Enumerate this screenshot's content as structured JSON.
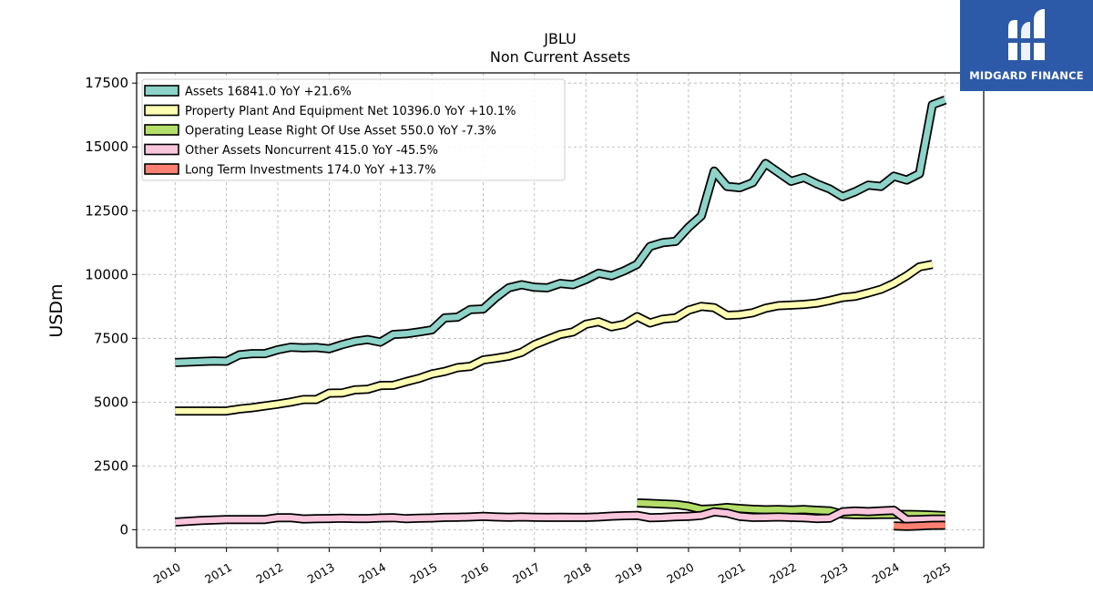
{
  "chart_data": {
    "type": "line",
    "title": "JBLU",
    "subtitle": "Non Current  Assets",
    "ylabel": "USDm",
    "xlabel": "",
    "ylim": [
      -700,
      17900
    ],
    "xlim": [
      2009.25,
      2025.75
    ],
    "yticks": [
      0,
      2500,
      5000,
      7500,
      10000,
      12500,
      15000,
      17500
    ],
    "ytick_labels": [
      "0",
      "2500",
      "5000",
      "7500",
      "10000",
      "12500",
      "15000",
      "17500"
    ],
    "xticks": [
      2010,
      2011,
      2012,
      2013,
      2014,
      2015,
      2016,
      2017,
      2018,
      2019,
      2020,
      2021,
      2022,
      2023,
      2024,
      2025
    ],
    "xtick_labels": [
      "2010",
      "2011",
      "2012",
      "2013",
      "2014",
      "2015",
      "2016",
      "2017",
      "2018",
      "2019",
      "2020",
      "2021",
      "2022",
      "2023",
      "2024",
      "2025"
    ],
    "grid": true,
    "legend_position": "top-left",
    "series": [
      {
        "name": "Assets",
        "legend": "Assets  16841.0 YoY +21.6%",
        "color": "#8dd3c7",
        "points": [
          [
            2010.0,
            6550
          ],
          [
            2010.25,
            6570
          ],
          [
            2010.5,
            6590
          ],
          [
            2010.75,
            6610
          ],
          [
            2011.0,
            6600
          ],
          [
            2011.25,
            6850
          ],
          [
            2011.5,
            6900
          ],
          [
            2011.75,
            6900
          ],
          [
            2012.0,
            7050
          ],
          [
            2012.25,
            7150
          ],
          [
            2012.5,
            7130
          ],
          [
            2012.75,
            7140
          ],
          [
            2013.0,
            7090
          ],
          [
            2013.25,
            7250
          ],
          [
            2013.5,
            7380
          ],
          [
            2013.75,
            7450
          ],
          [
            2014.0,
            7350
          ],
          [
            2014.25,
            7650
          ],
          [
            2014.5,
            7680
          ],
          [
            2014.75,
            7750
          ],
          [
            2015.0,
            7830
          ],
          [
            2015.25,
            8300
          ],
          [
            2015.5,
            8330
          ],
          [
            2015.75,
            8630
          ],
          [
            2016.0,
            8650
          ],
          [
            2016.25,
            9100
          ],
          [
            2016.5,
            9480
          ],
          [
            2016.75,
            9600
          ],
          [
            2017.0,
            9500
          ],
          [
            2017.25,
            9480
          ],
          [
            2017.5,
            9650
          ],
          [
            2017.75,
            9600
          ],
          [
            2018.0,
            9800
          ],
          [
            2018.25,
            10050
          ],
          [
            2018.5,
            9950
          ],
          [
            2018.75,
            10150
          ],
          [
            2019.0,
            10400
          ],
          [
            2019.25,
            11100
          ],
          [
            2019.5,
            11250
          ],
          [
            2019.75,
            11300
          ],
          [
            2020.0,
            11850
          ],
          [
            2020.25,
            12300
          ],
          [
            2020.5,
            14050
          ],
          [
            2020.75,
            13450
          ],
          [
            2021.0,
            13400
          ],
          [
            2021.25,
            13600
          ],
          [
            2021.5,
            14350
          ],
          [
            2021.75,
            14000
          ],
          [
            2022.0,
            13650
          ],
          [
            2022.25,
            13800
          ],
          [
            2022.5,
            13550
          ],
          [
            2022.75,
            13350
          ],
          [
            2023.0,
            13050
          ],
          [
            2023.25,
            13250
          ],
          [
            2023.5,
            13500
          ],
          [
            2023.75,
            13450
          ],
          [
            2024.0,
            13850
          ],
          [
            2024.25,
            13700
          ],
          [
            2024.5,
            13950
          ],
          [
            2024.75,
            16650
          ],
          [
            2025.0,
            16841
          ]
        ]
      },
      {
        "name": "Property Plant And Equipment Net",
        "legend": "Property Plant And Equipment Net  10396.0 YoY +10.1%",
        "color": "#ffffb3",
        "points": [
          [
            2010.0,
            4650
          ],
          [
            2010.25,
            4650
          ],
          [
            2010.5,
            4650
          ],
          [
            2010.75,
            4650
          ],
          [
            2011.0,
            4650
          ],
          [
            2011.25,
            4730
          ],
          [
            2011.5,
            4780
          ],
          [
            2011.75,
            4850
          ],
          [
            2012.0,
            4920
          ],
          [
            2012.25,
            5000
          ],
          [
            2012.5,
            5100
          ],
          [
            2012.75,
            5100
          ],
          [
            2013.0,
            5350
          ],
          [
            2013.25,
            5360
          ],
          [
            2013.5,
            5480
          ],
          [
            2013.75,
            5500
          ],
          [
            2014.0,
            5650
          ],
          [
            2014.25,
            5660
          ],
          [
            2014.5,
            5800
          ],
          [
            2014.75,
            5930
          ],
          [
            2015.0,
            6100
          ],
          [
            2015.25,
            6200
          ],
          [
            2015.5,
            6350
          ],
          [
            2015.75,
            6400
          ],
          [
            2016.0,
            6650
          ],
          [
            2016.25,
            6720
          ],
          [
            2016.5,
            6800
          ],
          [
            2016.75,
            6950
          ],
          [
            2017.0,
            7250
          ],
          [
            2017.25,
            7450
          ],
          [
            2017.5,
            7650
          ],
          [
            2017.75,
            7750
          ],
          [
            2018.0,
            8050
          ],
          [
            2018.25,
            8150
          ],
          [
            2018.5,
            7950
          ],
          [
            2018.75,
            8050
          ],
          [
            2019.0,
            8350
          ],
          [
            2019.25,
            8100
          ],
          [
            2019.5,
            8250
          ],
          [
            2019.75,
            8300
          ],
          [
            2020.0,
            8600
          ],
          [
            2020.25,
            8750
          ],
          [
            2020.5,
            8700
          ],
          [
            2020.75,
            8400
          ],
          [
            2021.0,
            8420
          ],
          [
            2021.25,
            8500
          ],
          [
            2021.5,
            8680
          ],
          [
            2021.75,
            8780
          ],
          [
            2022.0,
            8800
          ],
          [
            2022.25,
            8830
          ],
          [
            2022.5,
            8880
          ],
          [
            2022.75,
            8980
          ],
          [
            2023.0,
            9100
          ],
          [
            2023.25,
            9150
          ],
          [
            2023.5,
            9280
          ],
          [
            2023.75,
            9420
          ],
          [
            2024.0,
            9650
          ],
          [
            2024.25,
            9950
          ],
          [
            2024.5,
            10300
          ],
          [
            2024.75,
            10396
          ]
        ]
      },
      {
        "name": "Operating Lease Right Of Use Asset",
        "legend": "Operating Lease Right Of Use Asset  550.0 YoY -7.3%",
        "color": "#b3de69",
        "points": [
          [
            2019.0,
            1050
          ],
          [
            2019.25,
            1030
          ],
          [
            2019.5,
            1010
          ],
          [
            2019.75,
            990
          ],
          [
            2020.0,
            920
          ],
          [
            2020.25,
            800
          ],
          [
            2020.5,
            820
          ],
          [
            2020.75,
            870
          ],
          [
            2021.0,
            830
          ],
          [
            2021.25,
            800
          ],
          [
            2021.5,
            780
          ],
          [
            2021.75,
            790
          ],
          [
            2022.0,
            770
          ],
          [
            2022.25,
            790
          ],
          [
            2022.5,
            760
          ],
          [
            2022.75,
            740
          ],
          [
            2023.0,
            610
          ],
          [
            2023.25,
            590
          ],
          [
            2023.5,
            590
          ],
          [
            2023.75,
            600
          ],
          [
            2024.0,
            600
          ],
          [
            2024.25,
            600
          ],
          [
            2024.5,
            590
          ],
          [
            2024.75,
            570
          ],
          [
            2025.0,
            550
          ]
        ]
      },
      {
        "name": "Other Assets Noncurrent",
        "legend": "Other Assets Noncurrent  415.0 YoY -45.5%",
        "color": "#f9c6dc",
        "points": [
          [
            2010.0,
            300
          ],
          [
            2010.25,
            330
          ],
          [
            2010.5,
            360
          ],
          [
            2010.75,
            380
          ],
          [
            2011.0,
            400
          ],
          [
            2011.25,
            400
          ],
          [
            2011.5,
            400
          ],
          [
            2011.75,
            400
          ],
          [
            2012.0,
            470
          ],
          [
            2012.25,
            470
          ],
          [
            2012.5,
            420
          ],
          [
            2012.75,
            430
          ],
          [
            2013.0,
            440
          ],
          [
            2013.25,
            450
          ],
          [
            2013.5,
            440
          ],
          [
            2013.75,
            440
          ],
          [
            2014.0,
            460
          ],
          [
            2014.25,
            470
          ],
          [
            2014.5,
            430
          ],
          [
            2014.75,
            450
          ],
          [
            2015.0,
            460
          ],
          [
            2015.25,
            480
          ],
          [
            2015.5,
            490
          ],
          [
            2015.75,
            500
          ],
          [
            2016.0,
            520
          ],
          [
            2016.25,
            500
          ],
          [
            2016.5,
            490
          ],
          [
            2016.75,
            500
          ],
          [
            2017.0,
            490
          ],
          [
            2017.25,
            480
          ],
          [
            2017.5,
            490
          ],
          [
            2017.75,
            480
          ],
          [
            2018.0,
            480
          ],
          [
            2018.25,
            500
          ],
          [
            2018.5,
            530
          ],
          [
            2018.75,
            550
          ],
          [
            2019.0,
            560
          ],
          [
            2019.25,
            470
          ],
          [
            2019.5,
            480
          ],
          [
            2019.75,
            510
          ],
          [
            2020.0,
            520
          ],
          [
            2020.25,
            560
          ],
          [
            2020.5,
            700
          ],
          [
            2020.75,
            650
          ],
          [
            2021.0,
            520
          ],
          [
            2021.25,
            480
          ],
          [
            2021.5,
            490
          ],
          [
            2021.75,
            500
          ],
          [
            2022.0,
            480
          ],
          [
            2022.25,
            470
          ],
          [
            2022.5,
            440
          ],
          [
            2022.75,
            450
          ],
          [
            2023.0,
            700
          ],
          [
            2023.25,
            730
          ],
          [
            2023.5,
            710
          ],
          [
            2023.75,
            740
          ],
          [
            2024.0,
            760
          ],
          [
            2024.25,
            390
          ],
          [
            2024.5,
            400
          ],
          [
            2024.75,
            415
          ],
          [
            2025.0,
            415
          ]
        ]
      },
      {
        "name": "Long Term Investments",
        "legend": "Long Term Investments  174.0 YoY +13.7%",
        "color": "#fb8072",
        "points": [
          [
            2024.0,
            150
          ],
          [
            2024.25,
            130
          ],
          [
            2024.5,
            150
          ],
          [
            2024.75,
            170
          ],
          [
            2025.0,
            174
          ]
        ]
      }
    ]
  },
  "logo": {
    "text": "MIDGARD FINANCE",
    "background": "#2d5aa8"
  }
}
